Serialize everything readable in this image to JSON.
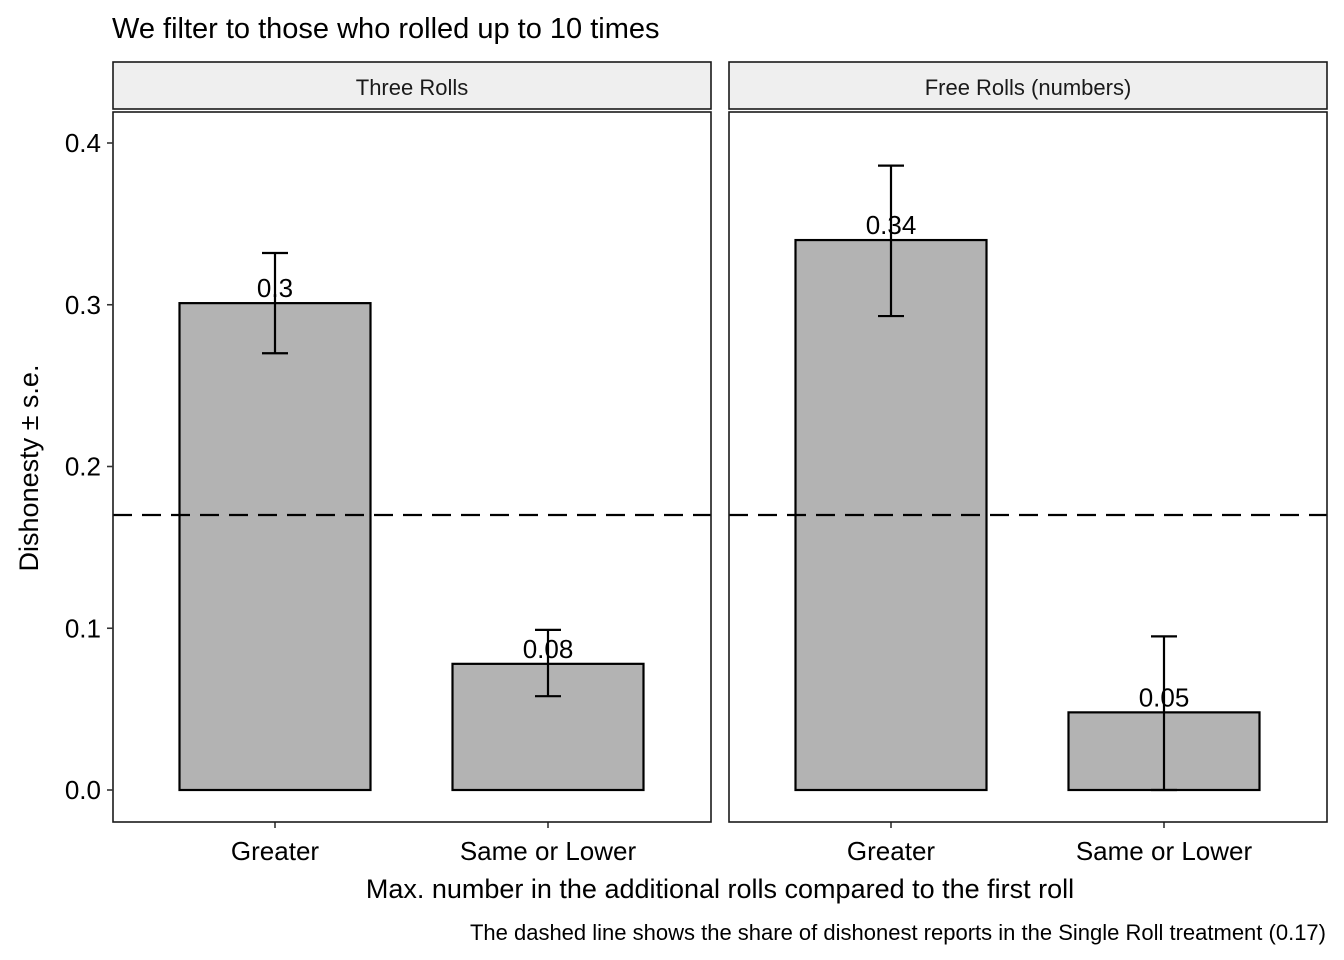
{
  "chart_data": {
    "type": "bar",
    "title": "We filter to those who rolled up to 10 times",
    "xlabel": "Max. number in the additional rolls compared to the first roll",
    "ylabel": "Dishonesty ± s.e.",
    "caption": "The dashed line shows the share of dishonest reports in the Single Roll treatment (0.17)",
    "ylim": [
      -0.02,
      0.42
    ],
    "yticks": [
      0.0,
      0.1,
      0.2,
      0.3,
      0.4
    ],
    "ytick_labels": [
      "0.0",
      "0.1",
      "0.2",
      "0.3",
      "0.4"
    ],
    "reference_line": {
      "y": 0.17,
      "style": "dashed"
    },
    "bar_color": "#b3b3b3",
    "categories": [
      "Greater",
      "Same or Lower"
    ],
    "facets": [
      {
        "name": "Three Rolls",
        "values": [
          0.301,
          0.078
        ],
        "labels": [
          "0.3",
          "0.08"
        ],
        "se_low": [
          0.27,
          0.058
        ],
        "se_high": [
          0.332,
          0.099
        ]
      },
      {
        "name": "Free Rolls (numbers)",
        "values": [
          0.34,
          0.048
        ],
        "labels": [
          "0.34",
          "0.05"
        ],
        "se_low": [
          0.293,
          0.0
        ],
        "se_high": [
          0.386,
          0.095
        ]
      }
    ],
    "grid": false,
    "legend": "none"
  }
}
